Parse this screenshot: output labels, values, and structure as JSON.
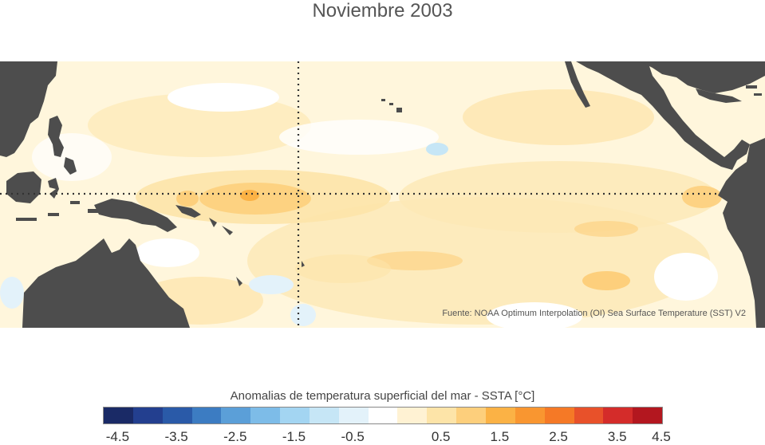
{
  "title": "Noviembre 2003",
  "source": "Fuente: NOAA Optimum Interpolation (OI) Sea Surface Temperature (SST) V2",
  "colorbar": {
    "label": "Anomalias de temperatura superficial del mar - SSTA  [°C]",
    "ticks": [
      "-4.5",
      "-3.5",
      "-2.5",
      "-1.5",
      "-0.5",
      "0.5",
      "1.5",
      "2.5",
      "3.5",
      "4.5"
    ],
    "colors": [
      "#1a2a66",
      "#233f8f",
      "#2a5aa8",
      "#3c7cc2",
      "#5b9fd8",
      "#7dbce8",
      "#a3d5f2",
      "#c6e6f6",
      "#e3f2fa",
      "#ffffff",
      "#fff2d3",
      "#fde4a8",
      "#fdcf7c",
      "#fbb245",
      "#f99630",
      "#f57926",
      "#e8512a",
      "#d42c2a",
      "#b3171f"
    ]
  },
  "colors": {
    "land": "#4d4d4d",
    "ocean_base": "#fff6dc",
    "guide": "#333333"
  }
}
